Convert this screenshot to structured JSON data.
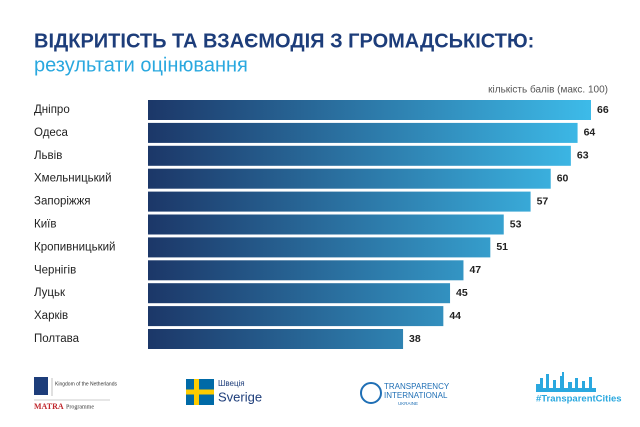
{
  "chart_data": {
    "type": "bar",
    "orientation": "horizontal",
    "title": "ВІДКРИТІСТЬ ТА ВЗАЄМОДІЯ З ГРОМАДСЬКІСТЮ:",
    "subtitle": "результати оцінювання",
    "x_label": "кількість балів (макс. 100)",
    "categories": [
      "Дніпро",
      "Одеса",
      "Львів",
      "Хмельницький",
      "Запоріжжя",
      "Київ",
      "Кропивницький",
      "Чернігів",
      "Луцьк",
      "Харків",
      "Полтава"
    ],
    "values": [
      66,
      64,
      63,
      60,
      57,
      53,
      51,
      47,
      45,
      44,
      38
    ],
    "gradient": [
      "#1c3768",
      "#3dbbe9"
    ]
  },
  "logos": {
    "netherlands": "Kingdom of the Netherlands",
    "matra": "MATRA",
    "programme": "Programme",
    "sweden_ua": "Швеція",
    "sweden": "Sverige",
    "ti_1": "TRANSPARENCY",
    "ti_2": "INTERNATIONAL",
    "ti_3": "UKRAINE",
    "cities": "#TransparentCities"
  }
}
